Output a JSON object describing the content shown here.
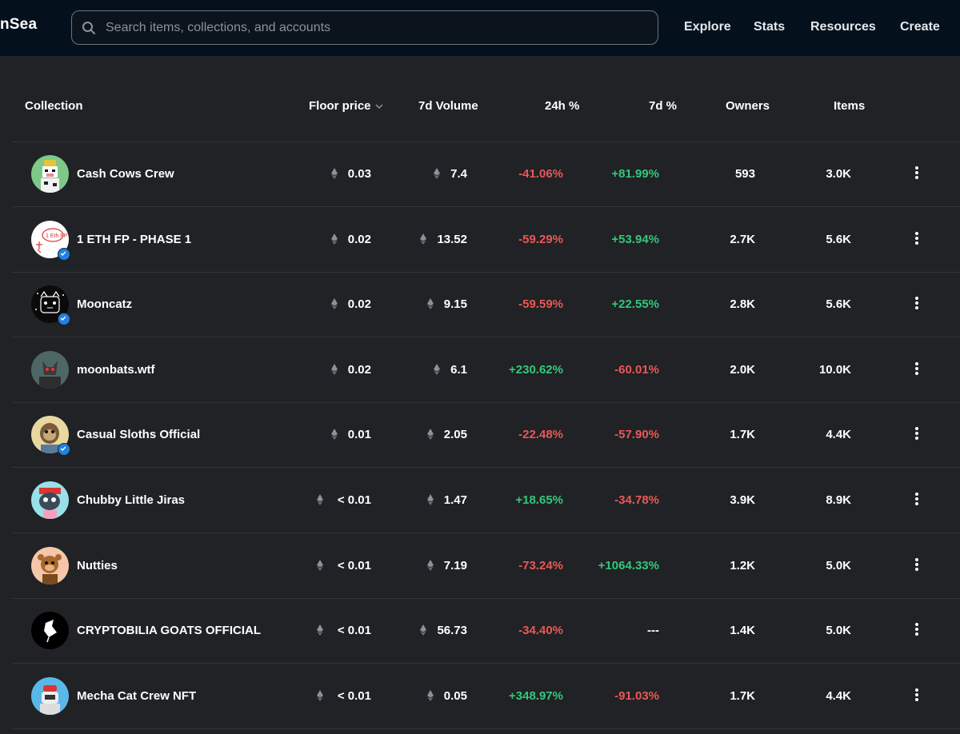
{
  "header": {
    "logo_text": "nSea",
    "search_placeholder": "Search items, collections, and accounts",
    "nav": [
      "Explore",
      "Stats",
      "Resources",
      "Create"
    ]
  },
  "table": {
    "columns": {
      "collection": "Collection",
      "floor_price": "Floor price",
      "volume_7d": "7d Volume",
      "change_24h": "24h %",
      "change_7d": "7d %",
      "owners": "Owners",
      "items": "Items"
    },
    "rows": [
      {
        "name": "Cash Cows Crew",
        "verified": false,
        "floor": "0.03",
        "volume": "7.4",
        "change_24h": "-41.06%",
        "change_7d": "+81.99%",
        "owners": "593",
        "items": "3.0K"
      },
      {
        "name": "1 ETH FP - PHASE 1",
        "verified": true,
        "floor": "0.02",
        "volume": "13.52",
        "change_24h": "-59.29%",
        "change_7d": "+53.94%",
        "owners": "2.7K",
        "items": "5.6K"
      },
      {
        "name": "Mooncatz",
        "verified": true,
        "floor": "0.02",
        "volume": "9.15",
        "change_24h": "-59.59%",
        "change_7d": "+22.55%",
        "owners": "2.8K",
        "items": "5.6K"
      },
      {
        "name": "moonbats.wtf",
        "verified": false,
        "floor": "0.02",
        "volume": "6.1",
        "change_24h": "+230.62%",
        "change_7d": "-60.01%",
        "owners": "2.0K",
        "items": "10.0K"
      },
      {
        "name": "Casual Sloths Official",
        "verified": true,
        "floor": "0.01",
        "volume": "2.05",
        "change_24h": "-22.48%",
        "change_7d": "-57.90%",
        "owners": "1.7K",
        "items": "4.4K"
      },
      {
        "name": "Chubby Little Jiras",
        "verified": false,
        "floor": "< 0.01",
        "volume": "1.47",
        "change_24h": "+18.65%",
        "change_7d": "-34.78%",
        "owners": "3.9K",
        "items": "8.9K"
      },
      {
        "name": "Nutties",
        "verified": false,
        "floor": "< 0.01",
        "volume": "7.19",
        "change_24h": "-73.24%",
        "change_7d": "+1064.33%",
        "owners": "1.2K",
        "items": "5.0K"
      },
      {
        "name": "CRYPTOBILIA GOATS OFFICIAL",
        "verified": false,
        "floor": "< 0.01",
        "volume": "56.73",
        "change_24h": "-34.40%",
        "change_7d": "---",
        "owners": "1.4K",
        "items": "5.0K"
      },
      {
        "name": "Mecha Cat Crew NFT",
        "verified": false,
        "floor": "< 0.01",
        "volume": "0.05",
        "change_24h": "+348.97%",
        "change_7d": "-91.03%",
        "owners": "1.7K",
        "items": "4.4K"
      }
    ]
  },
  "colors": {
    "background": "#202225",
    "topbar": "#04111d",
    "positive": "#34c77b",
    "negative": "#eb5757",
    "verified": "#2081e2"
  },
  "icons": {
    "search": "search-icon",
    "currency": "eth-icon",
    "sort": "chevron-down-icon",
    "more": "more-vertical-icon",
    "verified": "verified-check-icon"
  }
}
